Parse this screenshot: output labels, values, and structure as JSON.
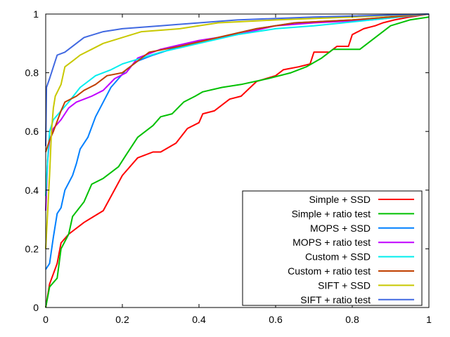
{
  "chart_data": {
    "type": "line",
    "title": "",
    "xlabel": "",
    "ylabel": "",
    "xlim": [
      0,
      1
    ],
    "ylim": [
      0,
      1
    ],
    "xticks": [
      "0",
      "0.2",
      "0.4",
      "0.6",
      "0.8",
      "1"
    ],
    "yticks": [
      "0",
      "0.2",
      "0.4",
      "0.6",
      "0.8",
      "1"
    ],
    "grid": false,
    "legend_position": "bottom-right",
    "series": [
      {
        "name": "Simple + SSD",
        "color": "#ff0000",
        "x": [
          0,
          0.01,
          0.03,
          0.04,
          0.06,
          0.1,
          0.15,
          0.2,
          0.24,
          0.28,
          0.3,
          0.34,
          0.37,
          0.4,
          0.41,
          0.44,
          0.48,
          0.51,
          0.55,
          0.6,
          0.62,
          0.66,
          0.69,
          0.7,
          0.74,
          0.76,
          0.79,
          0.8,
          0.83,
          0.86,
          0.88,
          0.91,
          0.95,
          1
        ],
        "y": [
          0,
          0.08,
          0.15,
          0.22,
          0.25,
          0.29,
          0.33,
          0.45,
          0.51,
          0.53,
          0.53,
          0.56,
          0.61,
          0.63,
          0.66,
          0.67,
          0.71,
          0.72,
          0.77,
          0.79,
          0.81,
          0.82,
          0.83,
          0.87,
          0.87,
          0.89,
          0.89,
          0.93,
          0.95,
          0.96,
          0.97,
          0.98,
          0.99,
          1
        ]
      },
      {
        "name": "Simple + ratio test",
        "color": "#00c000",
        "x": [
          0,
          0.01,
          0.03,
          0.04,
          0.06,
          0.07,
          0.1,
          0.12,
          0.15,
          0.19,
          0.21,
          0.24,
          0.28,
          0.3,
          0.33,
          0.36,
          0.39,
          0.41,
          0.46,
          0.51,
          0.58,
          0.64,
          0.68,
          0.72,
          0.75,
          0.82,
          0.86,
          0.9,
          0.95,
          1
        ],
        "y": [
          0,
          0.07,
          0.1,
          0.2,
          0.25,
          0.31,
          0.36,
          0.42,
          0.44,
          0.48,
          0.52,
          0.58,
          0.62,
          0.65,
          0.66,
          0.7,
          0.72,
          0.735,
          0.75,
          0.76,
          0.78,
          0.8,
          0.82,
          0.85,
          0.88,
          0.88,
          0.92,
          0.96,
          0.98,
          0.99
        ]
      },
      {
        "name": "MOPS + SSD",
        "color": "#0080ff",
        "x": [
          0,
          0.01,
          0.02,
          0.03,
          0.04,
          0.05,
          0.07,
          0.08,
          0.09,
          0.11,
          0.13,
          0.15,
          0.17,
          0.19,
          0.21,
          0.24,
          0.28,
          0.35,
          0.45,
          0.55,
          0.65,
          0.8,
          0.9,
          1
        ],
        "y": [
          0.13,
          0.15,
          0.24,
          0.32,
          0.34,
          0.4,
          0.45,
          0.49,
          0.54,
          0.58,
          0.65,
          0.7,
          0.75,
          0.78,
          0.81,
          0.84,
          0.86,
          0.89,
          0.92,
          0.95,
          0.97,
          0.98,
          0.99,
          1
        ]
      },
      {
        "name": "MOPS + ratio test",
        "color": "#c000ff",
        "x": [
          0,
          0.005,
          0.01,
          0.02,
          0.04,
          0.06,
          0.08,
          0.12,
          0.15,
          0.18,
          0.21,
          0.24,
          0.3,
          0.4,
          0.5,
          0.6,
          0.7,
          0.85,
          1
        ],
        "y": [
          0.33,
          0.5,
          0.57,
          0.61,
          0.64,
          0.68,
          0.7,
          0.72,
          0.74,
          0.78,
          0.8,
          0.85,
          0.88,
          0.91,
          0.93,
          0.96,
          0.97,
          0.98,
          1
        ]
      },
      {
        "name": "Custom + SSD",
        "color": "#00eeee",
        "x": [
          0,
          0.005,
          0.01,
          0.02,
          0.04,
          0.06,
          0.09,
          0.13,
          0.17,
          0.2,
          0.25,
          0.3,
          0.4,
          0.5,
          0.6,
          0.7,
          0.85,
          1
        ],
        "y": [
          0.38,
          0.5,
          0.6,
          0.64,
          0.67,
          0.7,
          0.75,
          0.79,
          0.81,
          0.83,
          0.85,
          0.87,
          0.9,
          0.93,
          0.95,
          0.96,
          0.98,
          1
        ]
      },
      {
        "name": "Custom + ratio test",
        "color": "#c04000",
        "x": [
          0,
          0.01,
          0.02,
          0.04,
          0.05,
          0.08,
          0.1,
          0.13,
          0.16,
          0.2,
          0.23,
          0.27,
          0.35,
          0.45,
          0.55,
          0.65,
          0.8,
          1
        ],
        "y": [
          0.53,
          0.57,
          0.6,
          0.67,
          0.7,
          0.72,
          0.74,
          0.76,
          0.79,
          0.8,
          0.83,
          0.87,
          0.89,
          0.92,
          0.95,
          0.97,
          0.98,
          1
        ]
      },
      {
        "name": "SIFT + SSD",
        "color": "#c8c800",
        "x": [
          0,
          0.01,
          0.015,
          0.02,
          0.025,
          0.04,
          0.05,
          0.07,
          0.09,
          0.12,
          0.15,
          0.2,
          0.25,
          0.35,
          0.45,
          0.6,
          0.8,
          1
        ],
        "y": [
          0.2,
          0.45,
          0.6,
          0.68,
          0.72,
          0.76,
          0.82,
          0.84,
          0.86,
          0.88,
          0.9,
          0.92,
          0.94,
          0.95,
          0.97,
          0.98,
          0.99,
          1
        ]
      },
      {
        "name": "SIFT + ratio test",
        "color": "#4169e1",
        "x": [
          0,
          0.002,
          0.01,
          0.02,
          0.03,
          0.05,
          0.08,
          0.1,
          0.15,
          0.2,
          0.3,
          0.5,
          0.7,
          1
        ],
        "y": [
          0.55,
          0.75,
          0.78,
          0.82,
          0.86,
          0.87,
          0.9,
          0.92,
          0.94,
          0.95,
          0.96,
          0.98,
          0.99,
          1
        ]
      }
    ]
  }
}
